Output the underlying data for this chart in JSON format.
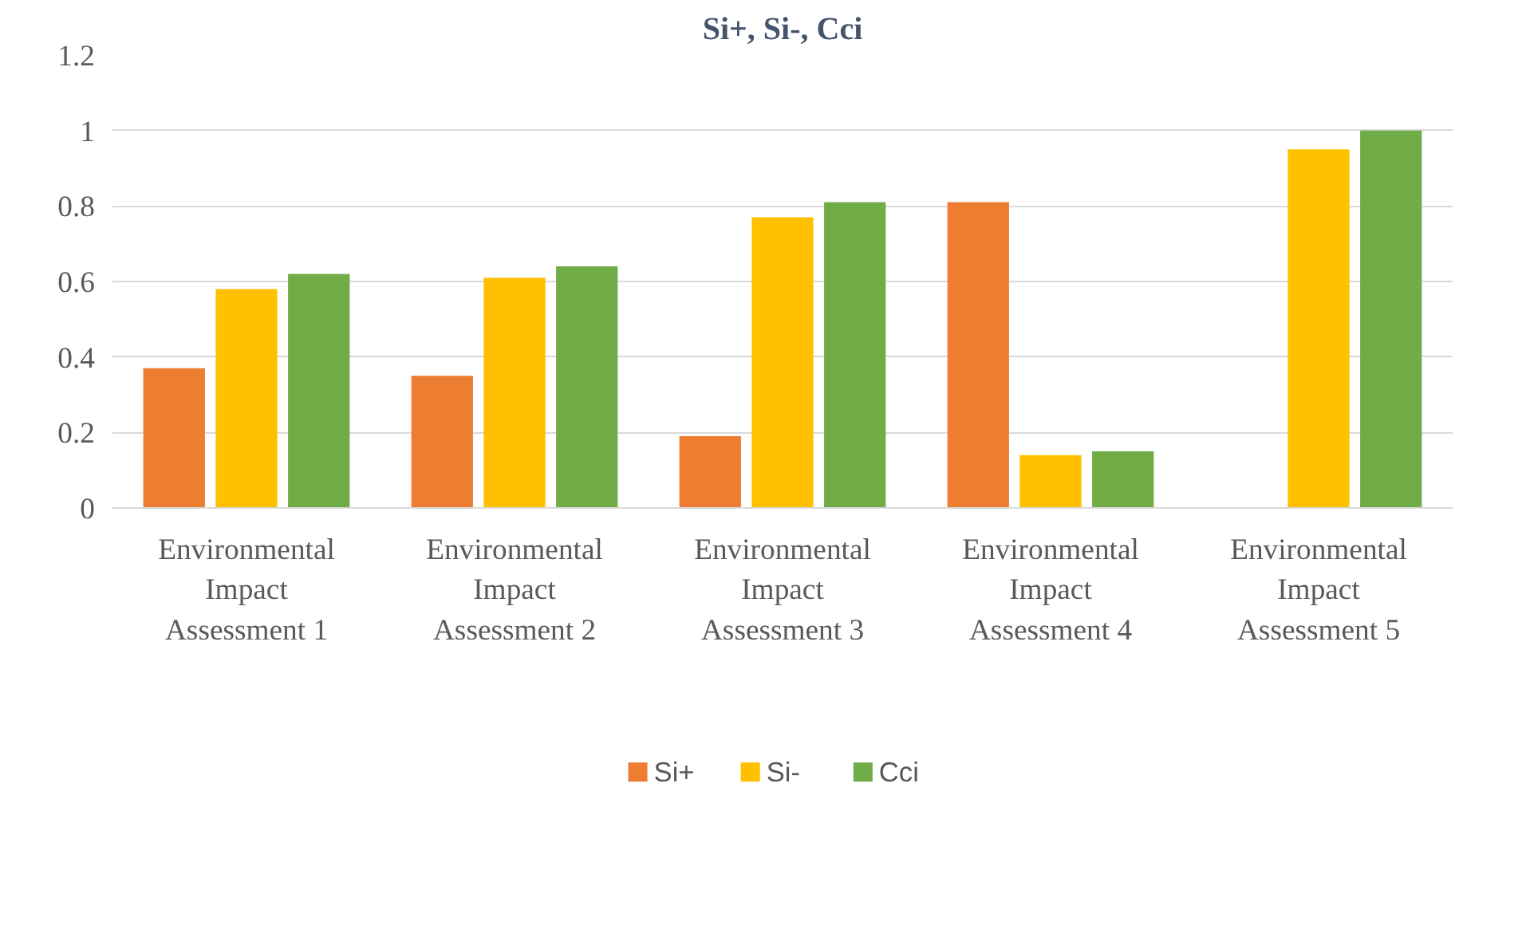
{
  "chart_data": {
    "type": "bar",
    "title": "Si+, Si-, Cci",
    "categories": [
      "Environmental Impact Assessment 1",
      "Environmental Impact Assessment 2",
      "Environmental Impact Assessment 3",
      "Environmental Impact Assessment 4",
      "Environmental Impact Assessment 5"
    ],
    "series": [
      {
        "name": "Si+",
        "color": "#ed7d31",
        "values": [
          0.37,
          0.35,
          0.19,
          0.81,
          0
        ]
      },
      {
        "name": "Si-",
        "color": "#ffc000",
        "values": [
          0.58,
          0.61,
          0.77,
          0.14,
          0.95
        ]
      },
      {
        "name": "Cci",
        "color": "#70ad47",
        "values": [
          0.62,
          0.64,
          0.81,
          0.15,
          1.0
        ]
      }
    ],
    "ylim": [
      0,
      1.2
    ],
    "yticks": [
      0,
      0.2,
      0.4,
      0.6,
      0.8,
      1,
      1.2
    ],
    "grid": "y",
    "legend": "bottom"
  }
}
